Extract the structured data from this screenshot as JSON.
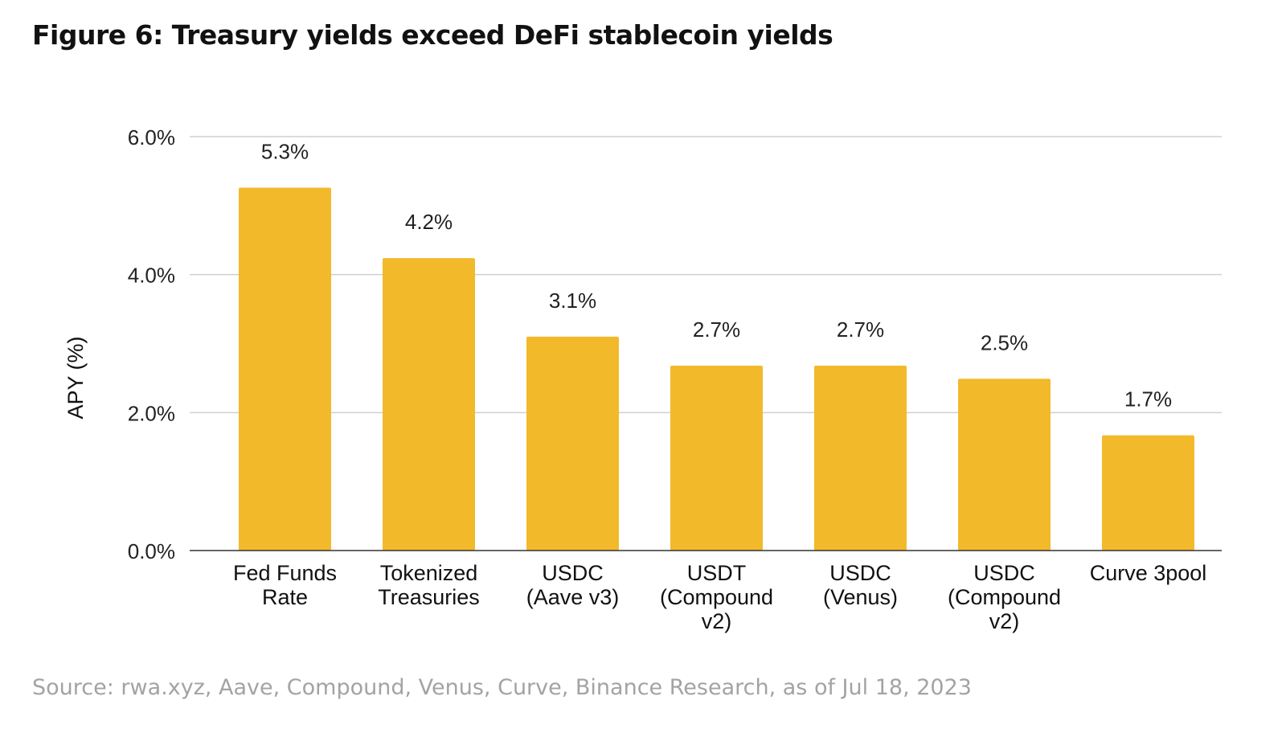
{
  "figure": {
    "title": "Figure 6: Treasury yields exceed DeFi stablecoin yields",
    "source": "Source: rwa.xyz, Aave, Compound, Venus, Curve, Binance Research, as of Jul 18, 2023"
  },
  "chart_data": {
    "type": "bar",
    "title": "Figure 6: Treasury yields exceed DeFi stablecoin yields",
    "xlabel": "",
    "ylabel": "APY (%)",
    "ylim": [
      0,
      6
    ],
    "y_ticks": [
      0,
      2,
      4,
      6
    ],
    "y_tick_labels": [
      "0.0%",
      "2.0%",
      "4.0%",
      "6.0%"
    ],
    "grid": true,
    "legend": "none",
    "bar_color": "#f2b92b",
    "categories": [
      [
        "Fed Funds",
        "Rate"
      ],
      [
        "Tokenized",
        "Treasuries"
      ],
      [
        "USDC",
        "(Aave v3)"
      ],
      [
        "USDT",
        "(Compound",
        "v2)"
      ],
      [
        "USDC",
        "(Venus)"
      ],
      [
        "USDC",
        "(Compound",
        "v2)"
      ],
      [
        "Curve 3pool"
      ]
    ],
    "values": [
      5.26,
      4.24,
      3.1,
      2.68,
      2.68,
      2.49,
      1.67
    ],
    "data_labels": [
      "5.3%",
      "4.2%",
      "3.1%",
      "2.7%",
      "2.7%",
      "2.5%",
      "1.7%"
    ]
  }
}
